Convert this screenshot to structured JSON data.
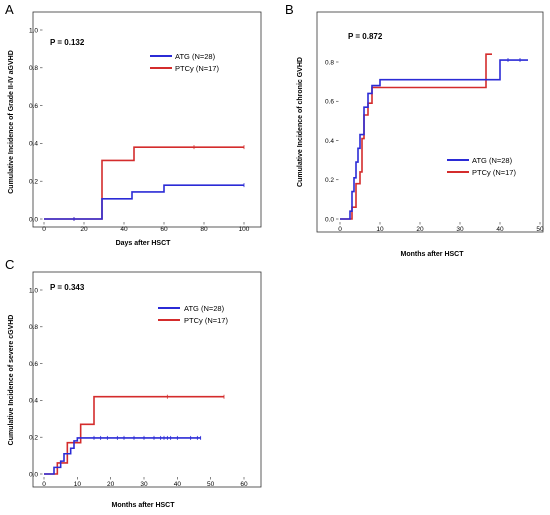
{
  "colors": {
    "ATG": "#2b2bd6",
    "PTCy": "#d42c2c"
  },
  "chart_data": [
    {
      "panel": "A",
      "type": "line",
      "step": true,
      "pvalue": "P = 0.132",
      "xlabel": "Days after HSCT",
      "ylabel": "Cumulative Incidence of Grade II-IV aGVHD",
      "xlim": [
        0,
        100
      ],
      "ylim": [
        0,
        1.0
      ],
      "xticks": [
        0,
        20,
        40,
        60,
        80,
        100
      ],
      "yticks": [
        0.0,
        0.2,
        0.4,
        0.6,
        0.8,
        1.0
      ],
      "ytick_labels": [
        "0.0",
        "0.2",
        "0.4",
        "0.6",
        "0.8",
        "1.0"
      ],
      "legend": "upper-center",
      "series": [
        {
          "name": "ATG (N=28)",
          "color_key": "ATG",
          "x": [
            0,
            29,
            29,
            44,
            44,
            60,
            60,
            100
          ],
          "y": [
            0,
            0,
            0.107,
            0.107,
            0.143,
            0.143,
            0.179,
            0.179
          ],
          "censor_x": [
            15,
            100
          ]
        },
        {
          "name": "PTCy (N=17)",
          "color_key": "PTCy",
          "x": [
            0,
            29,
            29,
            45,
            45,
            100
          ],
          "y": [
            0,
            0,
            0.31,
            0.31,
            0.38,
            0.38
          ],
          "censor_x": [
            15,
            75,
            100
          ]
        }
      ]
    },
    {
      "panel": "B",
      "type": "line",
      "step": true,
      "pvalue": "P = 0.872",
      "xlabel": "Months after HSCT",
      "ylabel": "Cumulative Incidence of chronic GVHD",
      "xlim": [
        0,
        50
      ],
      "ylim": [
        0,
        0.8
      ],
      "xticks": [
        0,
        10,
        20,
        30,
        40,
        50
      ],
      "yticks": [
        0.0,
        0.2,
        0.4,
        0.6,
        0.8
      ],
      "ytick_labels": [
        "0.0",
        "0.2",
        "0.4",
        "0.6",
        "0.8"
      ],
      "legend": "lower-right",
      "series": [
        {
          "name": "ATG (N=28)",
          "color_key": "ATG",
          "x": [
            0,
            2.5,
            2.5,
            3,
            3,
            3.5,
            3.5,
            4,
            4,
            4.5,
            4.5,
            5,
            5,
            6,
            6,
            7,
            7,
            8,
            8,
            10,
            10,
            40,
            40,
            47
          ],
          "y": [
            0,
            0,
            0.04,
            0.04,
            0.14,
            0.14,
            0.21,
            0.21,
            0.29,
            0.29,
            0.36,
            0.36,
            0.43,
            0.43,
            0.57,
            0.57,
            0.64,
            0.64,
            0.68,
            0.68,
            0.71,
            0.71,
            0.81,
            0.81
          ],
          "censor_x": [
            42,
            45
          ]
        },
        {
          "name": "PTCy (N=17)",
          "color_key": "PTCy",
          "x": [
            0,
            3,
            3,
            4,
            4,
            5,
            5,
            5.5,
            5.5,
            6,
            6,
            7,
            7,
            8,
            8,
            36.5,
            36.5,
            38
          ],
          "y": [
            0,
            0,
            0.06,
            0.06,
            0.18,
            0.18,
            0.24,
            0.24,
            0.41,
            0.41,
            0.53,
            0.53,
            0.59,
            0.59,
            0.67,
            0.67,
            0.84,
            0.84
          ],
          "censor_x": []
        }
      ]
    },
    {
      "panel": "C",
      "type": "line",
      "step": true,
      "pvalue": "P = 0.343",
      "xlabel": "Months after HSCT",
      "ylabel": "Cumulative Incidence of severe cGVHD",
      "xlim": [
        0,
        60
      ],
      "ylim": [
        0,
        1.0
      ],
      "xticks": [
        0,
        10,
        20,
        30,
        40,
        50,
        60
      ],
      "yticks": [
        0.0,
        0.2,
        0.4,
        0.6,
        0.8,
        1.0
      ],
      "ytick_labels": [
        "0.0",
        "0.2",
        "0.4",
        "0.6",
        "0.8",
        "1.0"
      ],
      "legend": "upper-right",
      "series": [
        {
          "name": "ATG (N=28)",
          "color_key": "ATG",
          "x": [
            0,
            3,
            3,
            5,
            5,
            6,
            6,
            8,
            8,
            9,
            9,
            10,
            10,
            47
          ],
          "y": [
            0,
            0,
            0.036,
            0.036,
            0.07,
            0.07,
            0.11,
            0.11,
            0.14,
            0.14,
            0.18,
            0.18,
            0.196,
            0.196
          ],
          "censor_x": [
            15,
            17,
            19,
            22,
            24,
            27,
            30,
            33,
            35,
            36,
            37,
            38,
            40,
            44,
            46,
            47
          ]
        },
        {
          "name": "PTCy (N=17)",
          "color_key": "PTCy",
          "x": [
            0,
            4,
            4,
            7,
            7,
            11,
            11,
            15,
            15,
            54
          ],
          "y": [
            0,
            0,
            0.06,
            0.06,
            0.17,
            0.17,
            0.27,
            0.27,
            0.42,
            0.42
          ],
          "censor_x": [
            37,
            54
          ]
        }
      ]
    }
  ]
}
